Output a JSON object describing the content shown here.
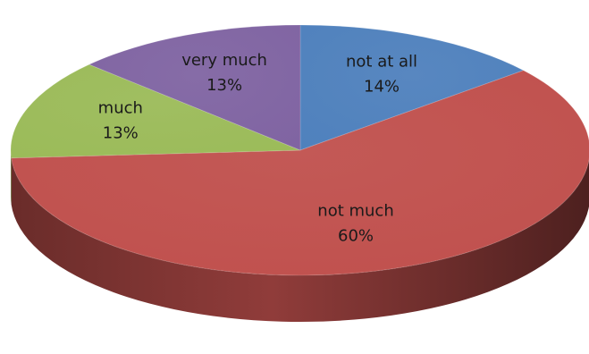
{
  "chart_data": {
    "type": "pie",
    "three_d": true,
    "title": "",
    "legend": "none",
    "start_angle_deg": 0,
    "direction": "clockwise",
    "slices": [
      {
        "label": "not at all",
        "value": 14,
        "value_label": "14%",
        "color": "#4F81BD"
      },
      {
        "label": "not much",
        "value": 60,
        "value_label": "60%",
        "color": "#C0504D"
      },
      {
        "label": "much",
        "value": 13,
        "value_label": "13%",
        "color": "#9BBB59"
      },
      {
        "label": "very much",
        "value": 13,
        "value_label": "13%",
        "color": "#8064A2"
      }
    ]
  }
}
